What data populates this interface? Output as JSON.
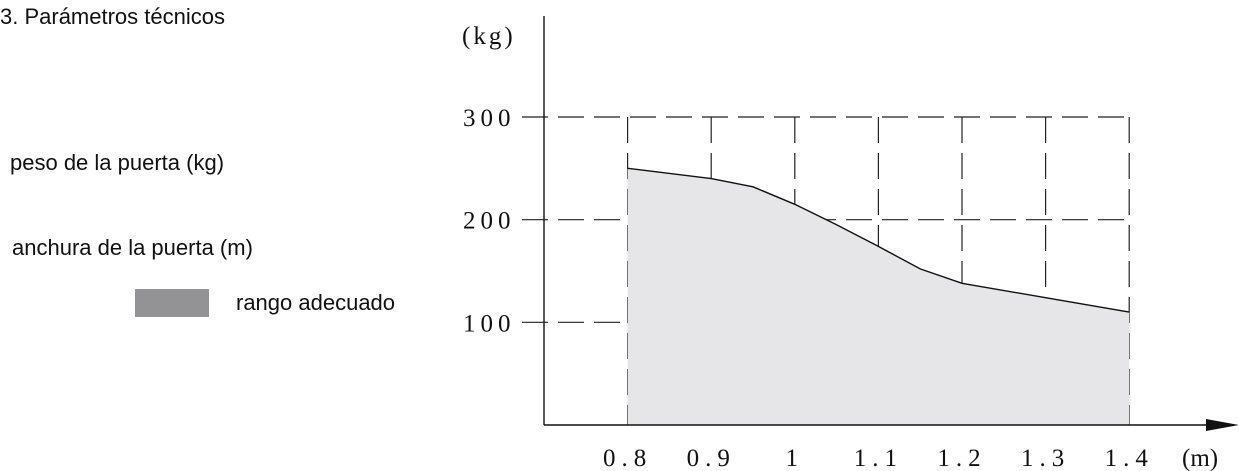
{
  "section_title": "3. Parámetros técnicos",
  "legend": {
    "weight_label": "peso de la puerta (kg)",
    "width_label": "anchura de la puerta (m)",
    "range_label": "rango adecuado",
    "range_color": "#939395"
  },
  "colors": {
    "fill": "#e6e6e8",
    "line": "#111111",
    "grid": "#222222"
  },
  "chart_data": {
    "type": "area",
    "x_unit": "(m)",
    "y_unit": "(kg)",
    "x_ticks": [
      "0.8",
      "0.9",
      "1",
      "1.1",
      "1.2",
      "1.3",
      "1.4"
    ],
    "x": [
      0.8,
      0.9,
      1.0,
      1.1,
      1.2,
      1.3,
      1.4
    ],
    "y_ticks": [
      "300",
      "200",
      "100"
    ],
    "y_tick_values": [
      300,
      200,
      100
    ],
    "series": [
      {
        "points": [
          [
            0.8,
            250
          ],
          [
            0.9,
            240
          ],
          [
            0.95,
            232
          ],
          [
            1.0,
            215
          ],
          [
            1.05,
            195
          ],
          [
            1.1,
            174
          ],
          [
            1.15,
            152
          ],
          [
            1.2,
            138
          ],
          [
            1.3,
            124
          ],
          [
            1.4,
            110
          ]
        ]
      }
    ],
    "xlim": [
      0.7,
      1.4
    ],
    "ylim": [
      0,
      300
    ],
    "grid": true,
    "grid_style": "dashed"
  }
}
